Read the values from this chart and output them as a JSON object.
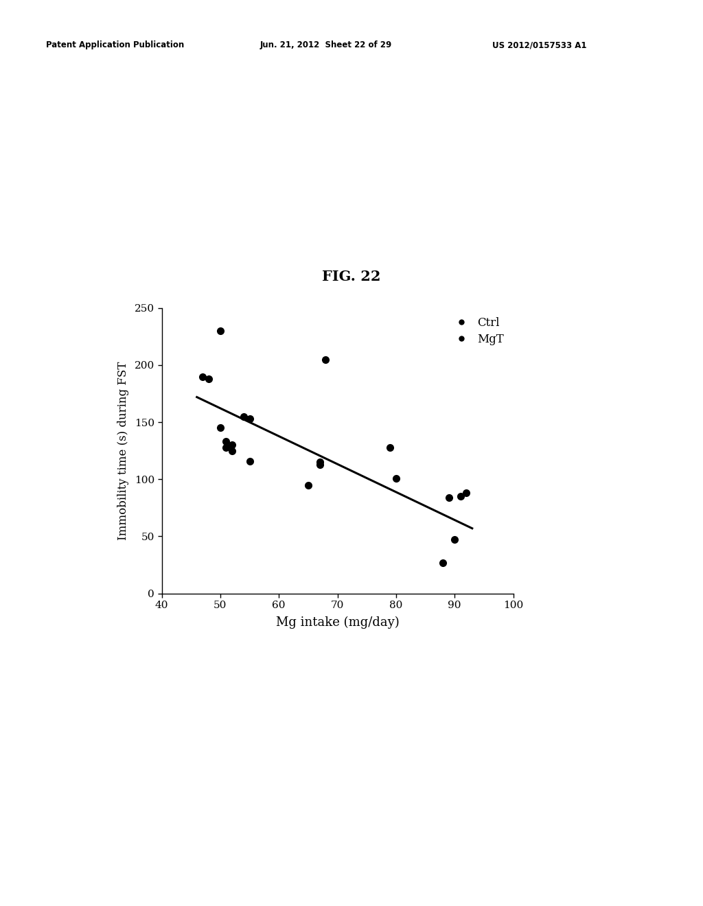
{
  "title": "FIG. 22",
  "xlabel": "Mg intake (mg/day)",
  "ylabel": "Immobility time (s) during FST",
  "header_left": "Patent Application Publication",
  "header_center": "Jun. 21, 2012  Sheet 22 of 29",
  "header_right": "US 2012/0157533 A1",
  "scatter_x": [
    47,
    48,
    50,
    50,
    51,
    51,
    52,
    52,
    54,
    55,
    55,
    65,
    67,
    67,
    68,
    79,
    80,
    88,
    89,
    90,
    91,
    92
  ],
  "scatter_y": [
    190,
    188,
    230,
    145,
    133,
    128,
    125,
    130,
    155,
    153,
    116,
    95,
    115,
    113,
    205,
    128,
    101,
    27,
    84,
    47,
    85,
    88
  ],
  "trendline_x": [
    46,
    93
  ],
  "trendline_y": [
    172,
    57
  ],
  "xlim": [
    40,
    100
  ],
  "ylim": [
    0,
    250
  ],
  "xticks": [
    40,
    50,
    60,
    70,
    80,
    90,
    100
  ],
  "yticks": [
    0,
    50,
    100,
    150,
    200,
    250
  ],
  "legend_labels": [
    "Ctrl",
    "MgT"
  ],
  "marker_color": "#000000",
  "marker_size": 7,
  "background_color": "#ffffff",
  "line_color": "#000000",
  "line_width": 2.2
}
